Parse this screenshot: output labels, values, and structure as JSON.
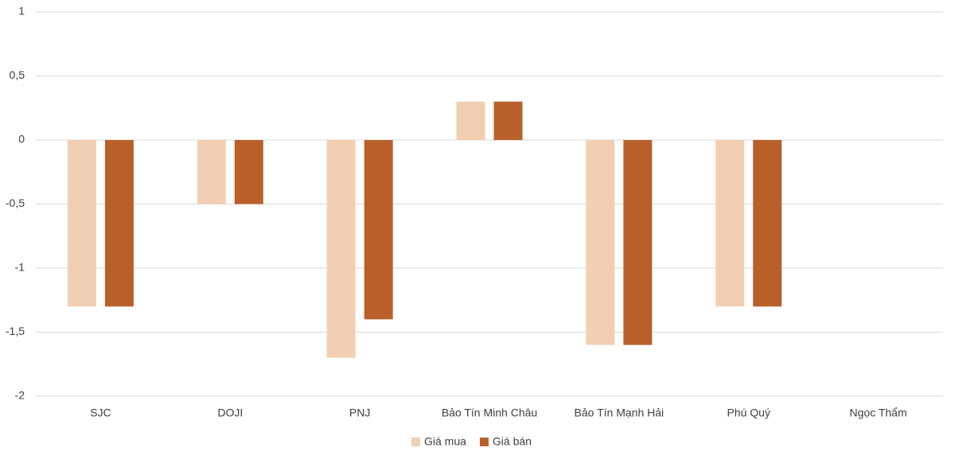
{
  "chart_data": {
    "type": "bar",
    "categories": [
      "SJC",
      "DOJI",
      "PNJ",
      "Bảo Tín Minh Châu",
      "Bảo Tín Mạnh Hải",
      "Phú Quý",
      "Ngọc Thẩm"
    ],
    "series": [
      {
        "name": "Giá mua",
        "color": "#f2cfb2",
        "values": [
          -1.3,
          -0.5,
          -1.7,
          0.3,
          -1.6,
          -1.3,
          0
        ]
      },
      {
        "name": "Giá bán",
        "color": "#b9602a",
        "values": [
          -1.3,
          -0.5,
          -1.4,
          0.3,
          -1.6,
          -1.3,
          0
        ]
      }
    ],
    "ylim": [
      -2,
      1
    ],
    "yticks": [
      -2,
      {
        "value": -1.5,
        "label": "-1,5"
      },
      -1,
      {
        "value": -0.5,
        "label": "-0,5"
      },
      0,
      {
        "value": 0.5,
        "label": "0,5"
      },
      1
    ],
    "grid": true,
    "legend": "bottom"
  }
}
